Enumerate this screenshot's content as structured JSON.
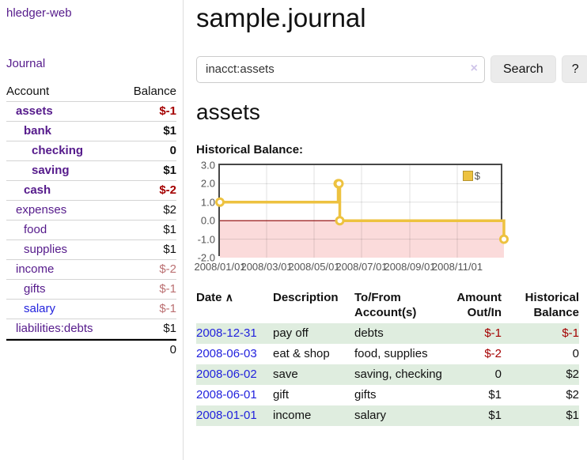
{
  "app": {
    "brand": "hledger-web"
  },
  "sidebar": {
    "nav": {
      "journal": "Journal"
    },
    "headers": {
      "account": "Account",
      "balance": "Balance"
    },
    "accounts": [
      {
        "name": "assets",
        "balance": "$-1",
        "depth": 1
      },
      {
        "name": "bank",
        "balance": "$1",
        "depth": 2
      },
      {
        "name": "checking",
        "balance": "0",
        "depth": 3
      },
      {
        "name": "saving",
        "balance": "$1",
        "depth": 3
      },
      {
        "name": "cash",
        "balance": "$-2",
        "depth": 2
      },
      {
        "name": "expenses",
        "balance": "$2",
        "depth": 1
      },
      {
        "name": "food",
        "balance": "$1",
        "depth": 2
      },
      {
        "name": "supplies",
        "balance": "$1",
        "depth": 2
      },
      {
        "name": "income",
        "balance": "$-2",
        "depth": 1
      },
      {
        "name": "gifts",
        "balance": "$-1",
        "depth": 2
      },
      {
        "name": "salary",
        "balance": "$-1",
        "depth": 2
      },
      {
        "name": "liabilities:debts",
        "balance": "$1",
        "depth": 1
      }
    ],
    "total": "0"
  },
  "main": {
    "title": "sample.journal",
    "search": {
      "value": "inacct:assets",
      "clear_icon": "×",
      "button": "Search",
      "help_button": "?"
    },
    "account_heading": "assets",
    "chart_label": "Historical Balance:"
  },
  "register": {
    "headers": {
      "date": "Date",
      "sort_icon": "∧",
      "description": "Description",
      "accounts": "To/From Account(s)",
      "amount": "Amount Out/In",
      "balance": "Historical Balance"
    },
    "rows": [
      {
        "date": "2008-12-31",
        "description": "pay off",
        "accounts": "debts",
        "amount": "$-1",
        "balance": "$-1"
      },
      {
        "date": "2008-06-03",
        "description": "eat & shop",
        "accounts": "food, supplies",
        "amount": "$-2",
        "balance": "0"
      },
      {
        "date": "2008-06-02",
        "description": "save",
        "accounts": "saving, checking",
        "amount": "0",
        "balance": "$2"
      },
      {
        "date": "2008-06-01",
        "description": "gift",
        "accounts": "gifts",
        "amount": "$1",
        "balance": "$2"
      },
      {
        "date": "2008-01-01",
        "description": "income",
        "accounts": "salary",
        "amount": "$1",
        "balance": "$1"
      }
    ]
  },
  "chart_data": {
    "type": "line",
    "title": "Historical Balance",
    "step": true,
    "xlim": [
      "2008-01-01",
      "2008-12-31"
    ],
    "ylim": [
      -2,
      3
    ],
    "x_ticks": [
      "2008/01/01",
      "2008/03/01",
      "2008/05/01",
      "2008/07/01",
      "2008/09/01",
      "2008/11/01"
    ],
    "y_ticks": [
      3,
      2,
      1,
      0,
      -1,
      -2
    ],
    "grid": true,
    "negative_region_color": "#fbdbdb",
    "zero_line_color": "#8b0000",
    "legend": {
      "label": "$",
      "position": "top-right"
    },
    "series": [
      {
        "name": "$",
        "color": "#edc240",
        "points": [
          [
            "2008-01-01",
            1
          ],
          [
            "2008-06-01",
            2
          ],
          [
            "2008-06-02",
            2
          ],
          [
            "2008-06-03",
            0
          ],
          [
            "2008-12-31",
            -1
          ]
        ]
      }
    ]
  },
  "colors": {
    "link_purple": "#551a8b",
    "link_blue": "#2222dd",
    "negative_strong": "#a40000",
    "negative_soft": "#bb7072",
    "row_stripe_green": "#dfeddf",
    "chart_line_gold": "#edc240",
    "chart_negative_pink": "#fbdbdb",
    "chart_zero_line": "#8b0000"
  }
}
